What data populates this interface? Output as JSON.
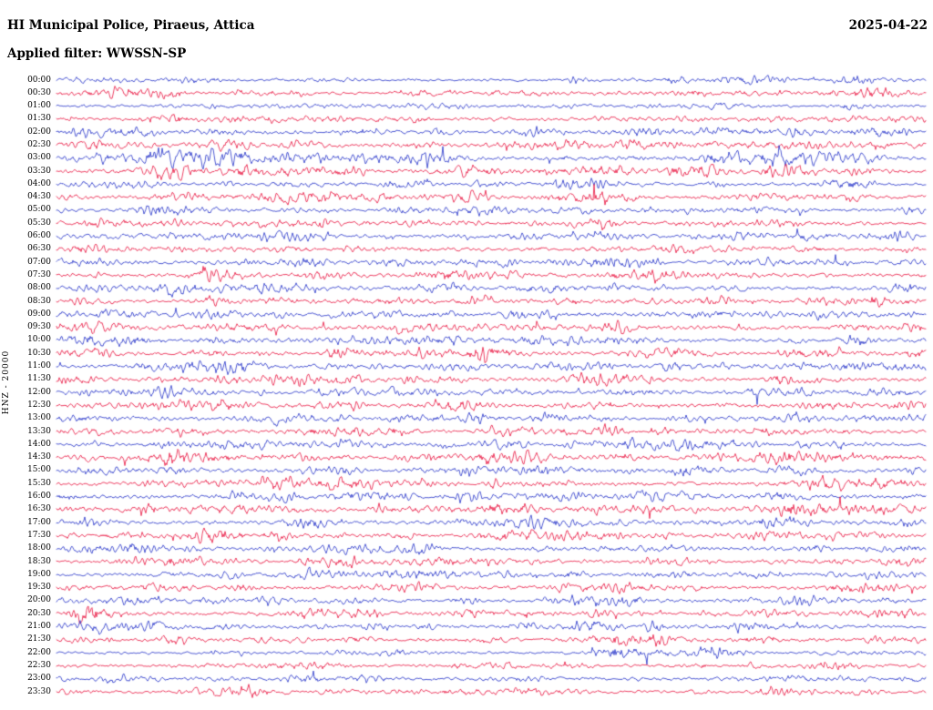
{
  "header": {
    "title": "HI Municipal Police, Piraeus, Attica",
    "date": "2025-04-22",
    "filter_line": "Applied filter: WWSSN-SP"
  },
  "chart_data": {
    "type": "line",
    "subtype": "helicorder_dayplot",
    "title": "HI Municipal Police, Piraeus, Attica",
    "date": "2025-04-22",
    "filter": "WWSSN-SP",
    "side_label": "HNZ - 20000",
    "channel": "HNZ",
    "scale": "20000",
    "minutes_per_row": 30,
    "legend": "none",
    "grid": false,
    "trace_colors": [
      "#2230c8",
      "#e8103c"
    ],
    "rows": [
      {
        "t": "00:00",
        "c": 0,
        "amp": 0.9,
        "ev": [
          [
            0.715,
            3.2,
            9
          ],
          [
            0.6,
            1.8,
            7
          ]
        ]
      },
      {
        "t": "00:30",
        "c": 1,
        "amp": 1.0,
        "ev": [
          [
            0.135,
            3.8,
            14
          ],
          [
            0.45,
            1.8,
            10
          ],
          [
            0.54,
            2.0,
            8
          ]
        ]
      },
      {
        "t": "01:00",
        "c": 0,
        "amp": 0.9,
        "ev": [
          [
            0.3,
            1.6,
            8
          ],
          [
            0.72,
            1.5,
            7
          ]
        ]
      },
      {
        "t": "01:30",
        "c": 1,
        "amp": 1.0,
        "ev": [
          [
            0.415,
            2.8,
            10
          ],
          [
            0.63,
            2.6,
            9
          ],
          [
            0.835,
            3.2,
            12
          ]
        ]
      },
      {
        "t": "02:00",
        "c": 0,
        "amp": 1.2,
        "ev": [
          [
            0.1,
            2.0,
            10
          ],
          [
            0.44,
            2.2,
            9
          ],
          [
            0.8,
            2.0,
            12
          ]
        ]
      },
      {
        "t": "02:30",
        "c": 1,
        "amp": 1.2,
        "ev": [
          [
            0.22,
            2.8,
            10
          ],
          [
            0.5,
            2.6,
            10
          ],
          [
            0.83,
            3.0,
            40
          ],
          [
            0.95,
            2.6,
            20
          ]
        ]
      },
      {
        "t": "03:00",
        "c": 0,
        "amp": 1.3,
        "ev": [
          [
            0.13,
            7.5,
            40
          ],
          [
            0.21,
            5.5,
            45
          ],
          [
            0.3,
            3.5,
            30
          ],
          [
            0.42,
            3.0,
            12
          ],
          [
            0.83,
            6.5,
            40
          ],
          [
            0.92,
            4.0,
            20
          ]
        ]
      },
      {
        "t": "03:30",
        "c": 1,
        "amp": 1.4,
        "ev": [
          [
            0.13,
            4.8,
            16
          ],
          [
            0.35,
            2.2,
            12
          ],
          [
            0.56,
            2.8,
            10
          ],
          [
            0.75,
            2.0,
            10
          ]
        ]
      },
      {
        "t": "04:00",
        "c": 0,
        "amp": 1.1,
        "ev": [
          [
            0.2,
            2.4,
            10
          ],
          [
            0.385,
            2.8,
            10
          ],
          [
            0.6,
            2.0,
            9
          ]
        ]
      },
      {
        "t": "04:30",
        "c": 1,
        "amp": 1.2,
        "ev": [
          [
            0.37,
            3.6,
            12
          ],
          [
            0.62,
            2.6,
            10
          ],
          [
            0.88,
            2.0,
            9
          ]
        ]
      },
      {
        "t": "05:00",
        "c": 0,
        "amp": 1.1,
        "ev": [
          [
            0.15,
            2.0,
            9
          ],
          [
            0.5,
            2.4,
            10
          ],
          [
            0.85,
            2.6,
            10
          ]
        ]
      },
      {
        "t": "05:30",
        "c": 1,
        "amp": 1.2,
        "ev": [
          [
            0.42,
            2.8,
            11
          ],
          [
            0.63,
            2.0,
            9
          ],
          [
            0.76,
            2.4,
            10
          ]
        ]
      },
      {
        "t": "06:00",
        "c": 0,
        "amp": 1.2,
        "ev": [
          [
            0.25,
            2.8,
            11
          ],
          [
            0.62,
            2.6,
            10
          ],
          [
            0.97,
            2.8,
            10
          ]
        ]
      },
      {
        "t": "06:30",
        "c": 1,
        "amp": 1.2,
        "ev": [
          [
            0.22,
            2.4,
            10
          ],
          [
            0.55,
            2.0,
            9
          ],
          [
            0.8,
            2.4,
            10
          ]
        ]
      },
      {
        "t": "07:00",
        "c": 0,
        "amp": 1.3,
        "ev": [
          [
            0.28,
            3.6,
            12
          ],
          [
            0.52,
            3.4,
            11
          ],
          [
            0.63,
            2.8,
            10
          ]
        ]
      },
      {
        "t": "07:30",
        "c": 1,
        "amp": 1.3,
        "ev": [
          [
            0.52,
            4.2,
            13
          ],
          [
            0.3,
            2.0,
            9
          ],
          [
            0.75,
            2.6,
            10
          ]
        ]
      },
      {
        "t": "08:00",
        "c": 0,
        "amp": 1.3,
        "ev": [
          [
            0.2,
            2.4,
            10
          ],
          [
            0.45,
            2.0,
            9
          ],
          [
            0.7,
            2.0,
            10
          ]
        ]
      },
      {
        "t": "08:30",
        "c": 1,
        "amp": 1.3,
        "ev": [
          [
            0.18,
            2.8,
            11
          ],
          [
            0.5,
            2.4,
            10
          ],
          [
            0.9,
            2.4,
            10
          ]
        ]
      },
      {
        "t": "09:00",
        "c": 0,
        "amp": 1.3,
        "ev": [
          [
            0.18,
            3.8,
            12
          ],
          [
            0.45,
            2.4,
            10
          ],
          [
            0.82,
            2.8,
            10
          ]
        ]
      },
      {
        "t": "09:30",
        "c": 1,
        "amp": 1.3,
        "ev": [
          [
            0.035,
            2.8,
            9
          ],
          [
            0.4,
            2.4,
            10
          ],
          [
            0.65,
            2.0,
            9
          ]
        ]
      },
      {
        "t": "10:00",
        "c": 0,
        "amp": 1.3,
        "ev": [
          [
            0.18,
            2.8,
            11
          ],
          [
            0.55,
            2.4,
            10
          ],
          [
            0.92,
            2.8,
            10
          ]
        ]
      },
      {
        "t": "10:30",
        "c": 1,
        "amp": 1.3,
        "ev": [
          [
            0.18,
            3.0,
            11
          ],
          [
            0.5,
            2.0,
            9
          ],
          [
            0.9,
            2.4,
            10
          ]
        ]
      },
      {
        "t": "11:00",
        "c": 0,
        "amp": 1.3,
        "ev": [
          [
            0.1,
            2.4,
            9
          ],
          [
            0.21,
            2.8,
            10
          ],
          [
            0.63,
            2.8,
            10
          ]
        ]
      },
      {
        "t": "11:30",
        "c": 1,
        "amp": 1.3,
        "ev": [
          [
            0.2,
            2.8,
            10
          ],
          [
            0.45,
            2.4,
            10
          ],
          [
            0.83,
            2.4,
            10
          ]
        ]
      },
      {
        "t": "12:00",
        "c": 0,
        "amp": 1.3,
        "ev": [
          [
            0.03,
            2.8,
            9
          ],
          [
            0.35,
            2.4,
            10
          ],
          [
            0.97,
            2.8,
            9
          ]
        ]
      },
      {
        "t": "12:30",
        "c": 1,
        "amp": 1.3,
        "ev": [
          [
            0.62,
            3.4,
            12
          ],
          [
            0.9,
            2.8,
            10
          ],
          [
            0.3,
            2.0,
            9
          ]
        ]
      },
      {
        "t": "13:00",
        "c": 0,
        "amp": 1.3,
        "ev": [
          [
            0.48,
            3.2,
            11
          ],
          [
            0.565,
            3.8,
            12
          ],
          [
            0.85,
            2.4,
            10
          ]
        ]
      },
      {
        "t": "13:30",
        "c": 1,
        "amp": 1.4,
        "ev": [
          [
            0.05,
            3.2,
            11
          ],
          [
            0.35,
            2.4,
            10
          ],
          [
            0.63,
            2.8,
            10
          ]
        ]
      },
      {
        "t": "14:00",
        "c": 0,
        "amp": 1.3,
        "ev": [
          [
            0.45,
            2.4,
            10
          ],
          [
            0.75,
            2.8,
            10
          ],
          [
            0.86,
            2.8,
            10
          ]
        ]
      },
      {
        "t": "14:30",
        "c": 1,
        "amp": 1.4,
        "ev": [
          [
            0.13,
            2.8,
            10
          ],
          [
            0.28,
            3.4,
            12
          ],
          [
            0.55,
            2.4,
            10
          ]
        ]
      },
      {
        "t": "15:00",
        "c": 0,
        "amp": 1.3,
        "ev": [
          [
            0.33,
            3.4,
            12
          ],
          [
            0.42,
            2.8,
            10
          ],
          [
            0.72,
            2.8,
            10
          ]
        ]
      },
      {
        "t": "15:30",
        "c": 1,
        "amp": 1.4,
        "ev": [
          [
            0.25,
            2.4,
            10
          ],
          [
            0.55,
            2.4,
            10
          ],
          [
            0.95,
            2.8,
            10
          ]
        ]
      },
      {
        "t": "16:00",
        "c": 0,
        "amp": 1.3,
        "ev": [
          [
            0.215,
            3.8,
            12
          ],
          [
            0.26,
            2.8,
            9
          ],
          [
            0.6,
            2.4,
            10
          ]
        ]
      },
      {
        "t": "16:30",
        "c": 1,
        "amp": 1.4,
        "ev": [
          [
            0.13,
            3.4,
            30
          ],
          [
            0.24,
            3.0,
            25
          ],
          [
            0.87,
            5.5,
            45
          ],
          [
            0.97,
            3.6,
            20
          ]
        ]
      },
      {
        "t": "17:00",
        "c": 0,
        "amp": 1.3,
        "ev": [
          [
            0.035,
            4.8,
            18
          ],
          [
            0.3,
            2.6,
            10
          ],
          [
            0.815,
            3.2,
            12
          ]
        ]
      },
      {
        "t": "17:30",
        "c": 1,
        "amp": 1.3,
        "ev": [
          [
            0.25,
            2.8,
            10
          ],
          [
            0.55,
            2.4,
            10
          ],
          [
            0.9,
            2.4,
            10
          ]
        ]
      },
      {
        "t": "18:00",
        "c": 0,
        "amp": 1.2,
        "ev": [
          [
            0.25,
            2.8,
            10
          ],
          [
            0.42,
            2.4,
            10
          ],
          [
            0.87,
            2.8,
            10
          ]
        ]
      },
      {
        "t": "18:30",
        "c": 1,
        "amp": 1.2,
        "ev": [
          [
            0.1,
            2.4,
            9
          ],
          [
            0.45,
            2.4,
            10
          ],
          [
            0.75,
            2.0,
            9
          ]
        ]
      },
      {
        "t": "19:00",
        "c": 0,
        "amp": 1.2,
        "ev": [
          [
            0.2,
            2.4,
            10
          ],
          [
            0.515,
            3.4,
            9
          ],
          [
            0.72,
            2.8,
            10
          ]
        ]
      },
      {
        "t": "19:30",
        "c": 1,
        "amp": 1.2,
        "ev": [
          [
            0.15,
            2.4,
            10
          ],
          [
            0.42,
            2.4,
            10
          ],
          [
            0.65,
            2.0,
            9
          ]
        ]
      },
      {
        "t": "20:00",
        "c": 0,
        "amp": 1.2,
        "ev": [
          [
            0.47,
            2.8,
            10
          ],
          [
            0.63,
            2.8,
            10
          ],
          [
            0.865,
            3.6,
            25
          ]
        ]
      },
      {
        "t": "20:30",
        "c": 1,
        "amp": 1.2,
        "ev": [
          [
            0.34,
            4.2,
            13
          ],
          [
            0.75,
            2.4,
            10
          ],
          [
            0.55,
            2.0,
            9
          ]
        ]
      },
      {
        "t": "21:00",
        "c": 0,
        "amp": 1.2,
        "ev": [
          [
            0.05,
            2.8,
            10
          ],
          [
            0.2,
            3.2,
            11
          ],
          [
            0.78,
            2.8,
            10
          ]
        ]
      },
      {
        "t": "21:30",
        "c": 1,
        "amp": 1.1,
        "ev": [
          [
            0.135,
            4.4,
            12
          ],
          [
            0.685,
            3.8,
            12
          ],
          [
            0.35,
            2.0,
            9
          ]
        ]
      },
      {
        "t": "22:00",
        "c": 0,
        "amp": 0.9,
        "ev": [
          [
            0.18,
            2.6,
            8
          ],
          [
            0.75,
            1.8,
            8
          ]
        ]
      },
      {
        "t": "22:30",
        "c": 1,
        "amp": 1.0,
        "ev": [
          [
            0.52,
            3.0,
            10
          ],
          [
            0.8,
            2.2,
            9
          ]
        ]
      },
      {
        "t": "23:00",
        "c": 0,
        "amp": 1.0,
        "ev": [
          [
            0.35,
            2.2,
            9
          ],
          [
            0.85,
            2.6,
            10
          ]
        ]
      },
      {
        "t": "23:30",
        "c": 1,
        "amp": 1.0,
        "ev": [
          [
            0.205,
            3.6,
            9
          ],
          [
            0.6,
            2.0,
            9
          ]
        ]
      }
    ]
  }
}
